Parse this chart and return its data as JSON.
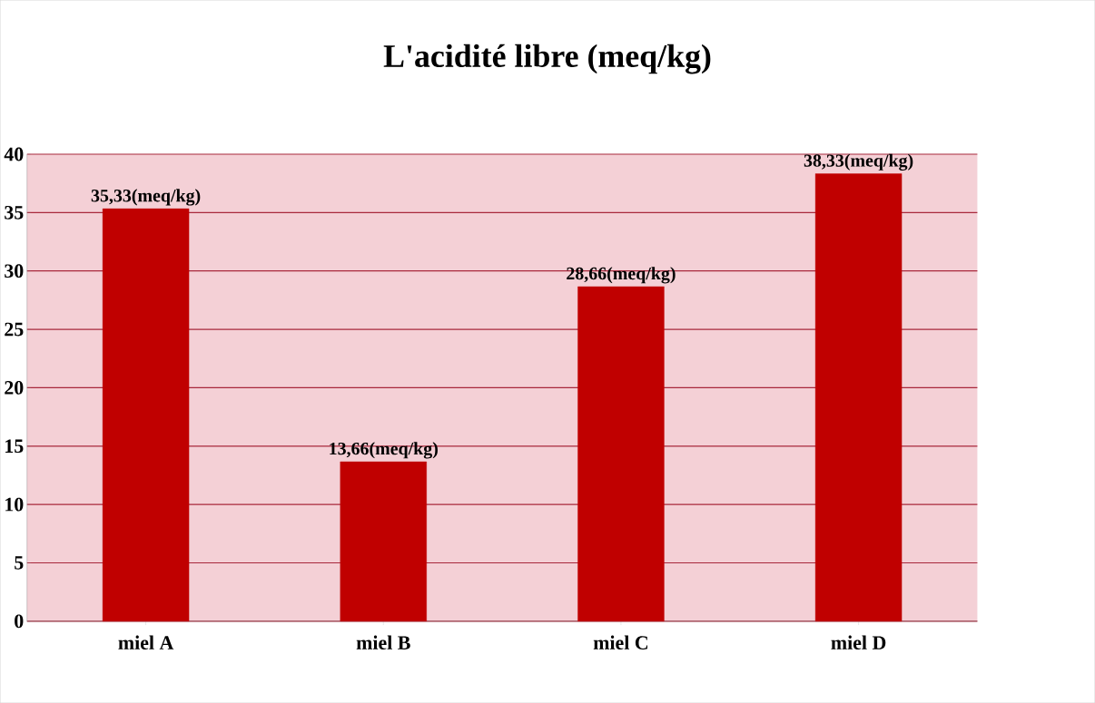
{
  "chart_data": {
    "type": "bar",
    "title": "L'acidité libre (meq/kg)",
    "categories": [
      "miel A",
      "miel B",
      "miel C",
      "miel D"
    ],
    "values": [
      35.33,
      13.66,
      28.66,
      38.33
    ],
    "value_labels": [
      "35,33(meq/kg)",
      "13,66(meq/kg)",
      "28,66(meq/kg)",
      "38,33(meq/kg)"
    ],
    "color": "#c00000",
    "ylim": [
      0,
      40
    ],
    "yticks": [
      0,
      5,
      10,
      15,
      20,
      25,
      30,
      35,
      40
    ],
    "grid": "y"
  }
}
